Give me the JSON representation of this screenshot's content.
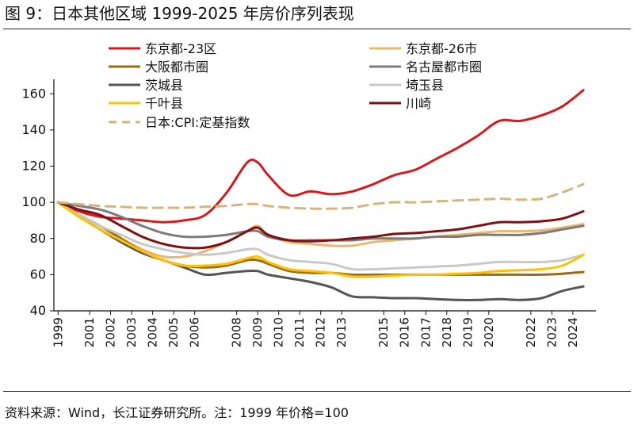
{
  "figure": {
    "title": "图 9：日本其他区域 1999-2025 年房价序列表现",
    "source": "资料来源：Wind，长江证券研究所。注：1999 年价格=100"
  },
  "chart_data": {
    "type": "line",
    "x": [
      1999,
      2000,
      2001,
      2002,
      2003,
      2004,
      2005,
      2006,
      2007,
      2008,
      2008.5,
      2009,
      2010,
      2011,
      2012,
      2013,
      2014,
      2015,
      2016,
      2017,
      2018,
      2019,
      2020,
      2021,
      2022,
      2023,
      2024,
      2025
    ],
    "x_tick_labels": [
      "1999",
      "2001",
      "2002",
      "2003",
      "2004",
      "2005",
      "2006",
      "2008",
      "2009",
      "2010",
      "2011",
      "2012",
      "2013",
      "2015",
      "2016",
      "2017",
      "2018",
      "2019",
      "2020",
      "2022",
      "2023",
      "2024"
    ],
    "x_tick_values": [
      1999,
      2000.5,
      2001.5,
      2002.5,
      2003.5,
      2004.5,
      2005.5,
      2007.5,
      2008.5,
      2009.5,
      2010.5,
      2011.5,
      2012.5,
      2014.5,
      2015.5,
      2016.5,
      2017.5,
      2018.5,
      2019.5,
      2021.5,
      2022.5,
      2023.5
    ],
    "ylim": [
      40,
      168
    ],
    "y_ticks": [
      40,
      60,
      80,
      100,
      120,
      140,
      160
    ],
    "xlim": [
      1998.8,
      2024.6
    ],
    "grid": false,
    "legend_position": "top",
    "series": [
      {
        "name": "东京都-23区",
        "color": "#d7191c",
        "dashed": false,
        "width": 3,
        "values": [
          [
            1999,
            100
          ],
          [
            2000,
            95
          ],
          [
            2001,
            92
          ],
          [
            2002,
            91
          ],
          [
            2003,
            90
          ],
          [
            2004,
            89
          ],
          [
            2005,
            90
          ],
          [
            2006,
            93
          ],
          [
            2007,
            105
          ],
          [
            2008,
            122
          ],
          [
            2008.5,
            122
          ],
          [
            2009,
            115
          ],
          [
            2010,
            104
          ],
          [
            2011,
            106
          ],
          [
            2012,
            104.5
          ],
          [
            2013,
            106
          ],
          [
            2014,
            110
          ],
          [
            2015,
            115
          ],
          [
            2016,
            118
          ],
          [
            2017,
            124
          ],
          [
            2018,
            130
          ],
          [
            2019,
            137
          ],
          [
            2020,
            145
          ],
          [
            2021,
            145
          ],
          [
            2022,
            148
          ],
          [
            2023,
            153
          ],
          [
            2024,
            162
          ]
        ]
      },
      {
        "name": "东京都-26市",
        "color": "#e8b86d",
        "dashed": false,
        "width": 3,
        "values": [
          [
            1999,
            100
          ],
          [
            2000,
            93
          ],
          [
            2001,
            87
          ],
          [
            2002,
            80
          ],
          [
            2003,
            74
          ],
          [
            2004,
            70
          ],
          [
            2005,
            70
          ],
          [
            2006,
            73
          ],
          [
            2007,
            78
          ],
          [
            2008,
            84
          ],
          [
            2008.5,
            87
          ],
          [
            2009,
            82
          ],
          [
            2010,
            78
          ],
          [
            2011,
            77
          ],
          [
            2012,
            76
          ],
          [
            2013,
            76
          ],
          [
            2014,
            78
          ],
          [
            2015,
            79
          ],
          [
            2016,
            80
          ],
          [
            2017,
            81
          ],
          [
            2018,
            82
          ],
          [
            2019,
            83
          ],
          [
            2020,
            84
          ],
          [
            2021,
            84
          ],
          [
            2022,
            84.5
          ],
          [
            2023,
            86
          ],
          [
            2024,
            88
          ]
        ]
      },
      {
        "name": "大阪都市圈",
        "color": "#9c6b10",
        "dashed": false,
        "width": 3,
        "values": [
          [
            1999,
            100
          ],
          [
            2000,
            93
          ],
          [
            2001,
            87
          ],
          [
            2002,
            80
          ],
          [
            2003,
            73
          ],
          [
            2004,
            68
          ],
          [
            2005,
            65
          ],
          [
            2006,
            64
          ],
          [
            2007,
            65
          ],
          [
            2008,
            68
          ],
          [
            2008.5,
            68
          ],
          [
            2009,
            66
          ],
          [
            2010,
            62
          ],
          [
            2011,
            61
          ],
          [
            2012,
            61
          ],
          [
            2013,
            60
          ],
          [
            2014,
            60
          ],
          [
            2015,
            60
          ],
          [
            2016,
            60
          ],
          [
            2017,
            60
          ],
          [
            2018,
            60
          ],
          [
            2019,
            60
          ],
          [
            2020,
            60
          ],
          [
            2021,
            60
          ],
          [
            2022,
            60
          ],
          [
            2023,
            60.5
          ],
          [
            2024,
            61.5
          ]
        ]
      },
      {
        "name": "名古屋都市圈",
        "color": "#7b7b7b",
        "dashed": false,
        "width": 3,
        "values": [
          [
            1999,
            100
          ],
          [
            2000,
            98
          ],
          [
            2001,
            96
          ],
          [
            2002,
            92
          ],
          [
            2003,
            87
          ],
          [
            2004,
            83
          ],
          [
            2005,
            81
          ],
          [
            2006,
            81
          ],
          [
            2007,
            82
          ],
          [
            2008,
            84
          ],
          [
            2008.5,
            84
          ],
          [
            2009,
            81
          ],
          [
            2010,
            79
          ],
          [
            2011,
            79
          ],
          [
            2012,
            79
          ],
          [
            2013,
            79
          ],
          [
            2014,
            80
          ],
          [
            2015,
            80
          ],
          [
            2016,
            80
          ],
          [
            2017,
            81
          ],
          [
            2018,
            81
          ],
          [
            2019,
            82
          ],
          [
            2020,
            82
          ],
          [
            2021,
            82
          ],
          [
            2022,
            83
          ],
          [
            2023,
            85
          ],
          [
            2024,
            87
          ]
        ]
      },
      {
        "name": "茨城县",
        "color": "#555555",
        "dashed": false,
        "width": 3,
        "values": [
          [
            1999,
            100
          ],
          [
            2000,
            92
          ],
          [
            2001,
            85
          ],
          [
            2002,
            78
          ],
          [
            2003,
            72
          ],
          [
            2004,
            68
          ],
          [
            2005,
            64
          ],
          [
            2006,
            60
          ],
          [
            2007,
            61
          ],
          [
            2008,
            62
          ],
          [
            2008.5,
            62
          ],
          [
            2009,
            60
          ],
          [
            2010,
            58
          ],
          [
            2011,
            56
          ],
          [
            2012,
            53
          ],
          [
            2013,
            48
          ],
          [
            2014,
            47.5
          ],
          [
            2015,
            47
          ],
          [
            2016,
            47
          ],
          [
            2017,
            46.5
          ],
          [
            2018,
            46
          ],
          [
            2019,
            46
          ],
          [
            2020,
            46.5
          ],
          [
            2021,
            46
          ],
          [
            2022,
            47
          ],
          [
            2023,
            51
          ],
          [
            2024,
            53.5
          ]
        ]
      },
      {
        "name": "埼玉县",
        "color": "#c9c9c9",
        "dashed": false,
        "width": 3,
        "values": [
          [
            1999,
            100
          ],
          [
            2000,
            93
          ],
          [
            2001,
            87
          ],
          [
            2002,
            82
          ],
          [
            2003,
            77
          ],
          [
            2004,
            74
          ],
          [
            2005,
            72
          ],
          [
            2006,
            71
          ],
          [
            2007,
            72
          ],
          [
            2008,
            74
          ],
          [
            2008.5,
            74
          ],
          [
            2009,
            71
          ],
          [
            2010,
            68
          ],
          [
            2011,
            67
          ],
          [
            2012,
            66
          ],
          [
            2013,
            63
          ],
          [
            2014,
            63
          ],
          [
            2015,
            63.5
          ],
          [
            2016,
            64
          ],
          [
            2017,
            64.5
          ],
          [
            2018,
            65
          ],
          [
            2019,
            66
          ],
          [
            2020,
            67
          ],
          [
            2021,
            67
          ],
          [
            2022,
            67
          ],
          [
            2023,
            68
          ],
          [
            2024,
            71
          ]
        ]
      },
      {
        "name": "千叶县",
        "color": "#ffc000",
        "dashed": false,
        "width": 3,
        "values": [
          [
            1999,
            100
          ],
          [
            2000,
            92
          ],
          [
            2001,
            85
          ],
          [
            2002,
            79
          ],
          [
            2003,
            73
          ],
          [
            2004,
            68
          ],
          [
            2005,
            65
          ],
          [
            2006,
            65
          ],
          [
            2007,
            66
          ],
          [
            2008,
            69
          ],
          [
            2008.5,
            70
          ],
          [
            2009,
            67
          ],
          [
            2010,
            63
          ],
          [
            2011,
            62
          ],
          [
            2012,
            61
          ],
          [
            2013,
            59
          ],
          [
            2014,
            59
          ],
          [
            2015,
            59.5
          ],
          [
            2016,
            60
          ],
          [
            2017,
            60
          ],
          [
            2018,
            60.5
          ],
          [
            2019,
            61
          ],
          [
            2020,
            62
          ],
          [
            2021,
            62.5
          ],
          [
            2022,
            63
          ],
          [
            2023,
            65
          ],
          [
            2024,
            71
          ]
        ]
      },
      {
        "name": "川崎",
        "color": "#7f0f12",
        "dashed": false,
        "width": 3,
        "values": [
          [
            1999,
            100
          ],
          [
            2000,
            96
          ],
          [
            2001,
            93
          ],
          [
            2002,
            87
          ],
          [
            2003,
            81
          ],
          [
            2004,
            77
          ],
          [
            2005,
            75
          ],
          [
            2006,
            75
          ],
          [
            2007,
            78
          ],
          [
            2008,
            84
          ],
          [
            2008.5,
            86
          ],
          [
            2009,
            82
          ],
          [
            2010,
            79
          ],
          [
            2011,
            78.5
          ],
          [
            2012,
            79
          ],
          [
            2013,
            80
          ],
          [
            2014,
            81
          ],
          [
            2015,
            82.5
          ],
          [
            2016,
            83
          ],
          [
            2017,
            84
          ],
          [
            2018,
            85
          ],
          [
            2019,
            87
          ],
          [
            2020,
            89
          ],
          [
            2021,
            89
          ],
          [
            2022,
            89.5
          ],
          [
            2023,
            91
          ],
          [
            2024,
            95
          ]
        ]
      },
      {
        "name": "日本:CPI:定基指数",
        "color": "#d6b47a",
        "dashed": true,
        "width": 3,
        "values": [
          [
            1999,
            100
          ],
          [
            2000,
            99
          ],
          [
            2001,
            98
          ],
          [
            2002,
            97.5
          ],
          [
            2003,
            97
          ],
          [
            2004,
            97
          ],
          [
            2005,
            97
          ],
          [
            2006,
            97.5
          ],
          [
            2007,
            98
          ],
          [
            2008,
            99
          ],
          [
            2008.5,
            99
          ],
          [
            2009,
            98
          ],
          [
            2010,
            97
          ],
          [
            2011,
            96.5
          ],
          [
            2012,
            96.5
          ],
          [
            2013,
            97
          ],
          [
            2014,
            99
          ],
          [
            2015,
            100
          ],
          [
            2016,
            100
          ],
          [
            2017,
            100.5
          ],
          [
            2018,
            101
          ],
          [
            2019,
            101.5
          ],
          [
            2020,
            102
          ],
          [
            2021,
            101.5
          ],
          [
            2022,
            102
          ],
          [
            2023,
            105.5
          ],
          [
            2024,
            110
          ]
        ]
      }
    ]
  }
}
